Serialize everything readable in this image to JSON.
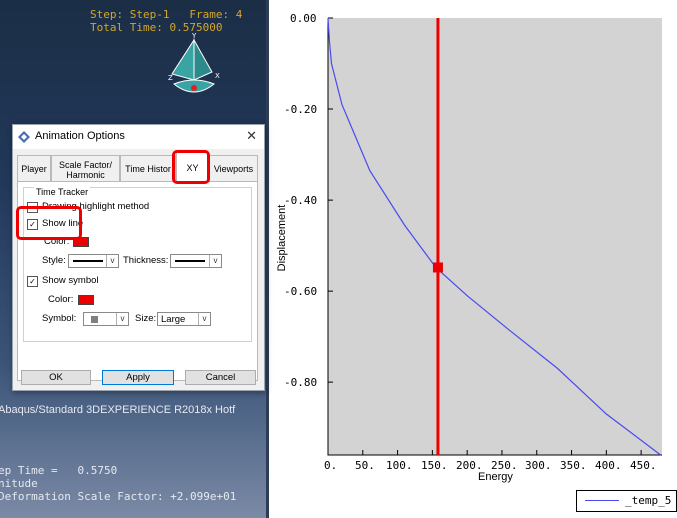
{
  "viewport": {
    "step_line": "Step: Step-1   Frame: 4",
    "total_time_line": "Total Time: 0.575000",
    "triad": {
      "y": "Y",
      "z": "Z",
      "x": "X"
    },
    "info_lines": [
      "Abaqus/Standard 3DEXPERIENCE R2018x Hotf",
      "ep Time =   0.5750",
      "nitude",
      "Deformation Scale Factor: +2.099e+01"
    ]
  },
  "dialog": {
    "title": "Animation Options",
    "close_glyph": "✕",
    "tabs": [
      {
        "label": "Player"
      },
      {
        "label": "Scale Factor/ Harmonic"
      },
      {
        "label": "Time Histor"
      },
      {
        "label": "XY"
      },
      {
        "label": "Viewports"
      }
    ],
    "active_tab": "XY",
    "time_tracker": {
      "legend": "Time Tracker",
      "drawing_method_label": "Drawing highlight method",
      "show_line_label": "Show line",
      "show_line_checked": "✓",
      "line_color_label": "Color:",
      "style_label": "Style:",
      "thickness_label": "Thickness:",
      "show_symbol_label": "Show symbol",
      "show_symbol_checked": "✓",
      "symbol_color_label": "Color:",
      "symbol_label": "Symbol:",
      "size_label": "Size:",
      "size_value": "Large",
      "line_color": "#ee0000",
      "symbol_color": "#ee0000"
    },
    "buttons": {
      "ok": "OK",
      "apply": "Apply",
      "cancel": "Cancel"
    },
    "dropdown_glyph": "v"
  },
  "colors": {
    "highlight": "#ee0000",
    "curve": "#4a4af0",
    "tracker": "#ee0000",
    "plot_bg": "#d3d3d3"
  },
  "chart_data": {
    "type": "line",
    "title": "",
    "xlabel": "Energy",
    "ylabel": "Displacement",
    "xlim": [
      0,
      480
    ],
    "ylim": [
      -0.96,
      0
    ],
    "x_ticks": [
      "0.",
      "50.",
      "100.",
      "150.",
      "200.",
      "250.",
      "300.",
      "350.",
      "400.",
      "450."
    ],
    "y_ticks": [
      "0.00",
      "-0.20",
      "-0.40",
      "-0.60",
      "-0.80"
    ],
    "series": [
      {
        "name": "_temp_5",
        "x": [
          0,
          2,
          5,
          20,
          60,
          110,
          155,
          200,
          260,
          330,
          400,
          478
        ],
        "y": [
          0,
          -0.05,
          -0.1,
          -0.19,
          -0.335,
          -0.455,
          -0.548,
          -0.61,
          -0.685,
          -0.77,
          -0.87,
          -0.96
        ]
      }
    ],
    "tracker": {
      "x": 158,
      "y": -0.548
    },
    "legend_position": "bottom-right",
    "grid": false
  }
}
